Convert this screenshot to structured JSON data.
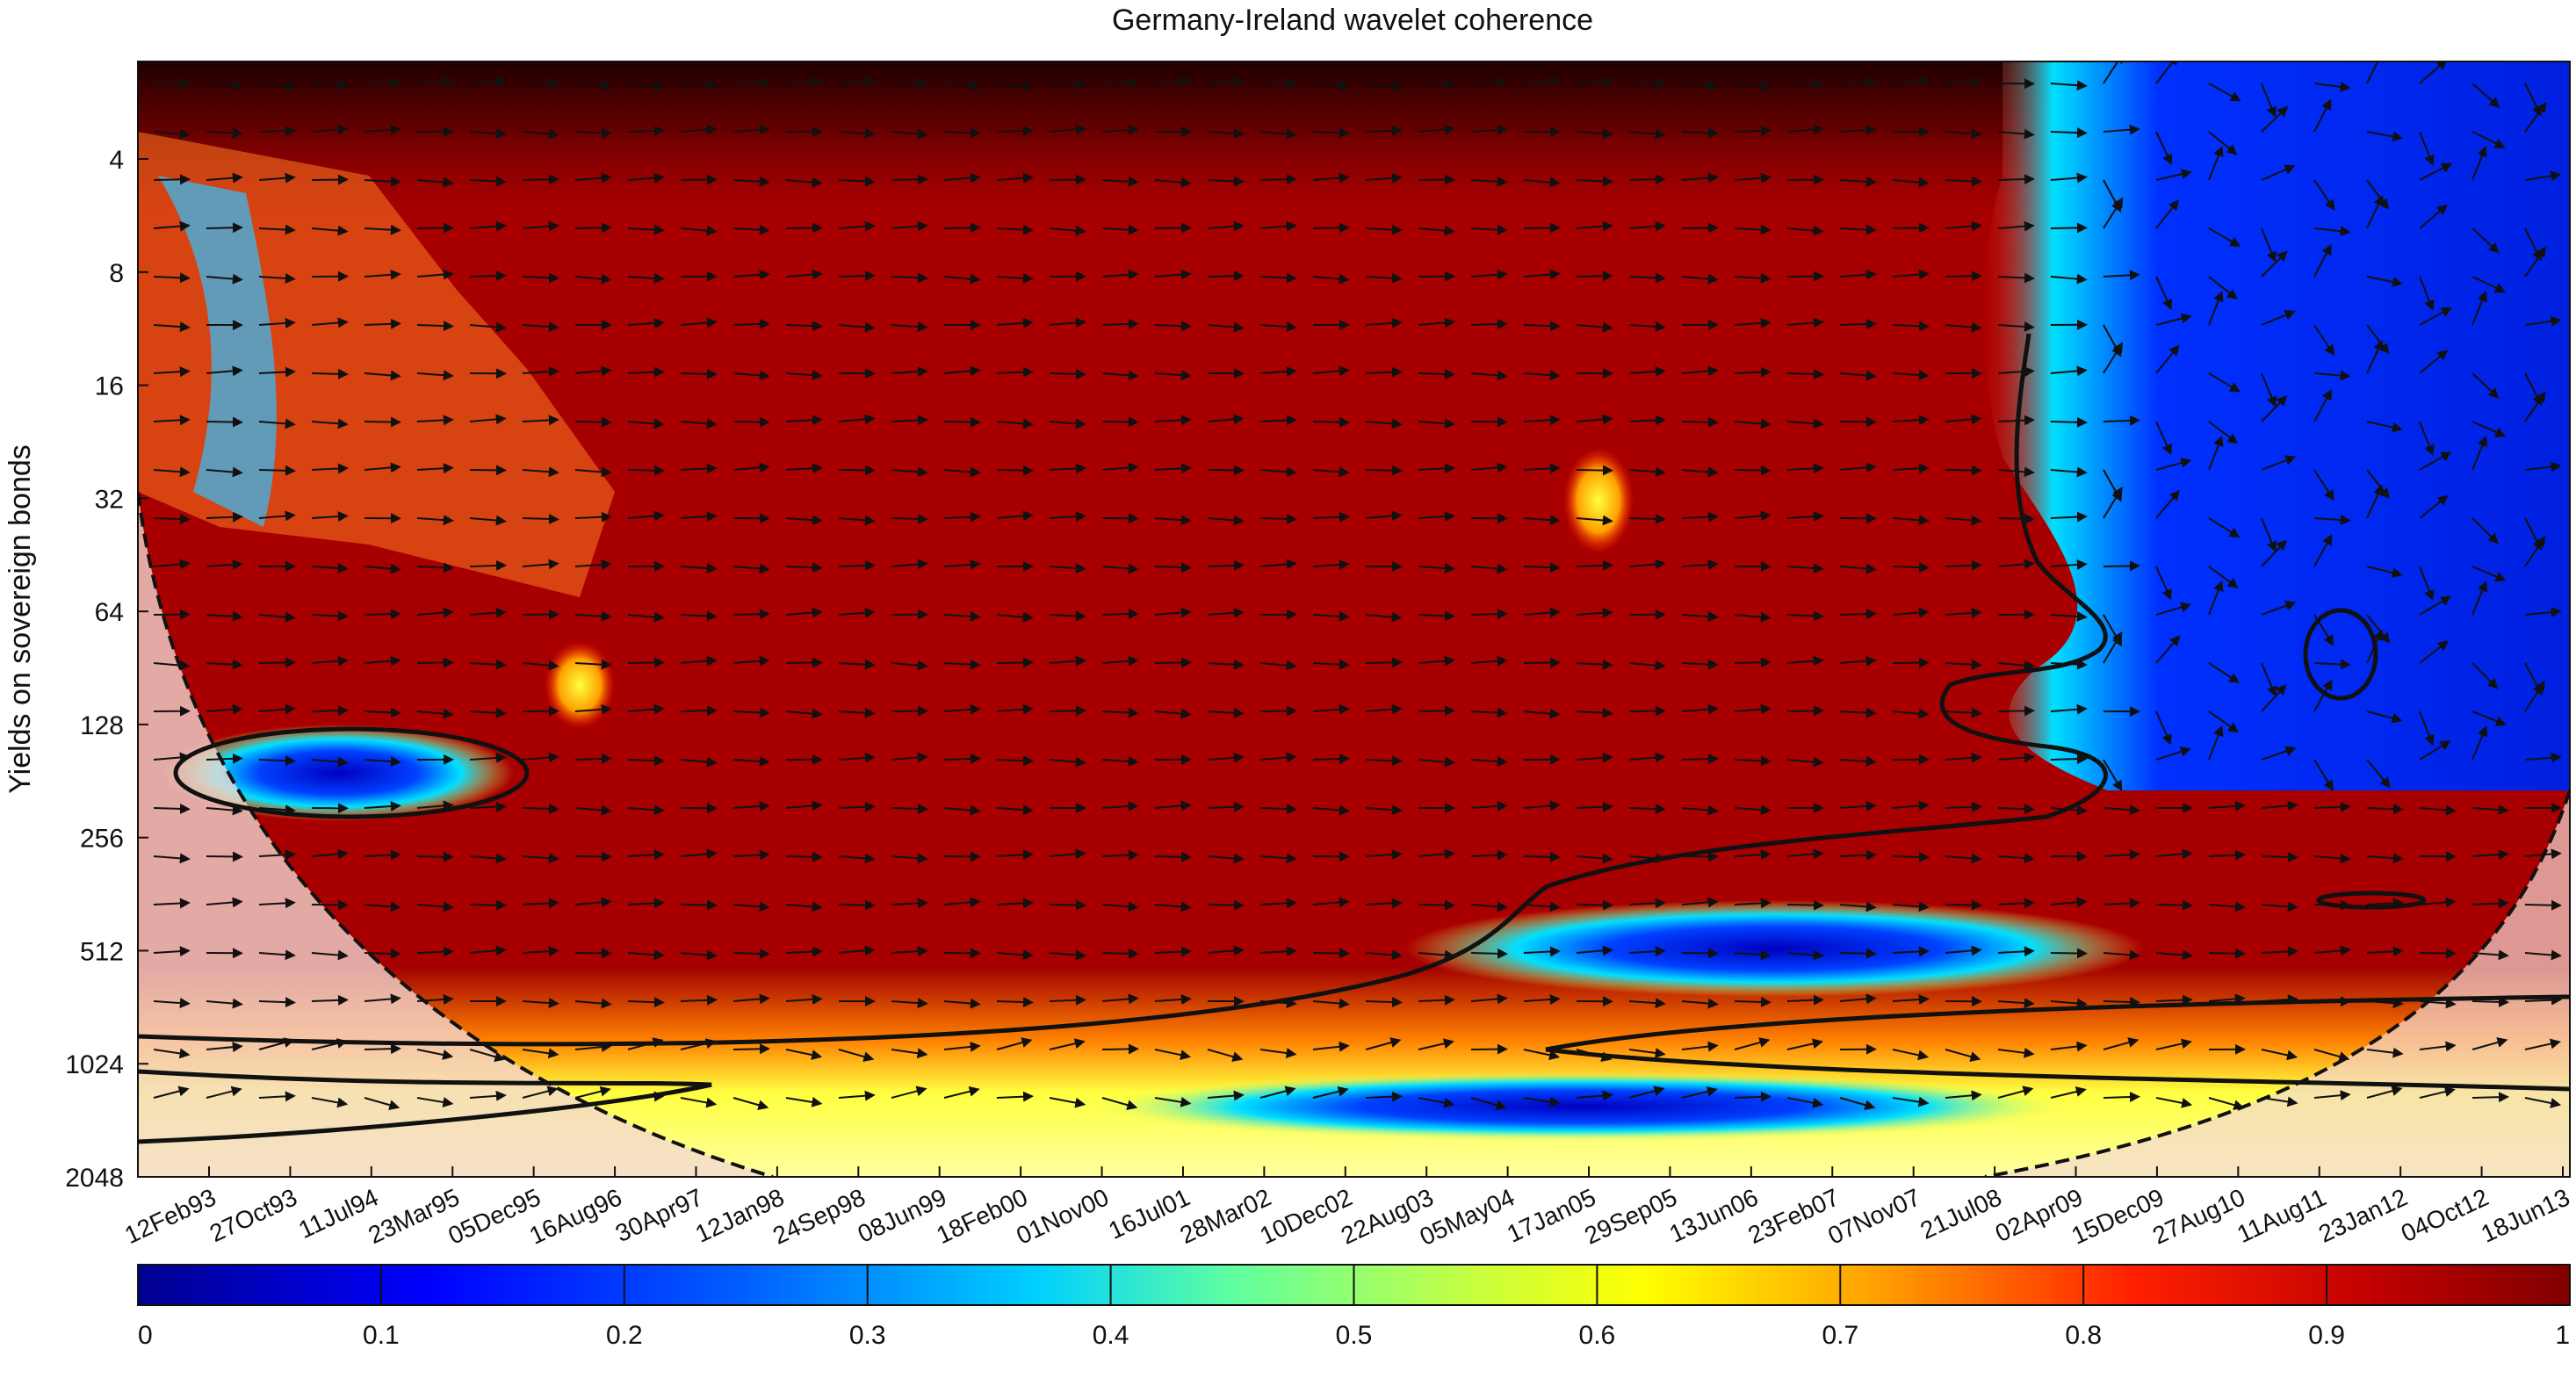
{
  "chart_data": {
    "type": "heatmap",
    "title": "Germany-Ireland wavelet coherence",
    "ylabel": "Yields on sovereign bonds",
    "xlabel": "",
    "x_ticks": [
      "12Feb93",
      "27Oct93",
      "11Jul94",
      "23Mar95",
      "05Dec95",
      "16Aug96",
      "30Apr97",
      "12Jan98",
      "24Sep98",
      "08Jun99",
      "18Feb00",
      "01Nov00",
      "16Jul01",
      "28Mar02",
      "10Dec02",
      "22Aug03",
      "05May04",
      "17Jan05",
      "29Sep05",
      "13Jun06",
      "23Feb07",
      "07Nov07",
      "21Jul08",
      "02Apr09",
      "15Dec09",
      "27Aug10",
      "11Aug11",
      "23Jan12",
      "04Oct12",
      "18Jun13"
    ],
    "y_ticks": [
      "4",
      "8",
      "16",
      "32",
      "64",
      "128",
      "256",
      "512",
      "1024",
      "2048"
    ],
    "y_scale": "log2",
    "y_reversed": true,
    "colorbar": {
      "ticks": [
        "0",
        "0.1",
        "0.2",
        "0.3",
        "0.4",
        "0.5",
        "0.6",
        "0.7",
        "0.8",
        "0.9",
        "1"
      ],
      "range": [
        0,
        1
      ]
    },
    "colormap": [
      "#00008f",
      "#0000ff",
      "#0080ff",
      "#00ffff",
      "#80ff80",
      "#ffff00",
      "#ff8000",
      "#ff0000",
      "#800000"
    ],
    "dominant_coherence": "high (0.8-1) across most periods 1995-2008; low (0-0.4) at short scales after 2009",
    "cone_of_influence_shading": "#f3d9d2"
  }
}
